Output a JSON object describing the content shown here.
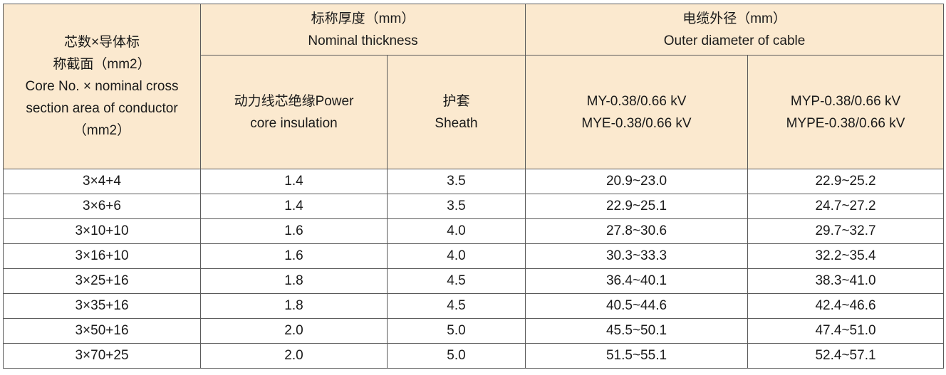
{
  "headers": {
    "core": {
      "lines": [
        "芯数×导体标",
        "称截面（mm2）",
        "Core No. × nominal cross",
        "section area of conductor",
        "（mm2）"
      ]
    },
    "nominal_thickness": {
      "lines": [
        "标称厚度（mm）",
        "Nominal thickness"
      ]
    },
    "outer_diameter": {
      "lines": [
        "电缆外径（mm）",
        "Outer diameter of cable"
      ]
    },
    "power_core_insulation": {
      "lines": [
        "动力线芯绝缘Power",
        "core insulation"
      ]
    },
    "sheath": {
      "lines": [
        "护套",
        "Sheath"
      ]
    },
    "my": {
      "lines": [
        "MY-0.38/0.66 kV",
        "MYE-0.38/0.66 kV"
      ]
    },
    "myp": {
      "lines": [
        "MYP-0.38/0.66 kV",
        "MYPE-0.38/0.66 kV"
      ]
    }
  },
  "rows": [
    {
      "core": "3×4+4",
      "insulation": "1.4",
      "sheath": "3.5",
      "my": "20.9~23.0",
      "myp": "22.9~25.2"
    },
    {
      "core": "3×6+6",
      "insulation": "1.4",
      "sheath": "3.5",
      "my": "22.9~25.1",
      "myp": "24.7~27.2"
    },
    {
      "core": "3×10+10",
      "insulation": "1.6",
      "sheath": "4.0",
      "my": "27.8~30.6",
      "myp": "29.7~32.7"
    },
    {
      "core": "3×16+10",
      "insulation": "1.6",
      "sheath": "4.0",
      "my": "30.3~33.3",
      "myp": "32.2~35.4"
    },
    {
      "core": "3×25+16",
      "insulation": "1.8",
      "sheath": "4.5",
      "my": "36.4~40.1",
      "myp": "38.3~41.0"
    },
    {
      "core": "3×35+16",
      "insulation": "1.8",
      "sheath": "4.5",
      "my": "40.5~44.6",
      "myp": "42.4~46.6"
    },
    {
      "core": "3×50+16",
      "insulation": "2.0",
      "sheath": "5.0",
      "my": "45.5~50.1",
      "myp": "47.4~51.0"
    },
    {
      "core": "3×70+25",
      "insulation": "2.0",
      "sheath": "5.0",
      "my": "51.5~55.1",
      "myp": "52.4~57.1"
    }
  ]
}
